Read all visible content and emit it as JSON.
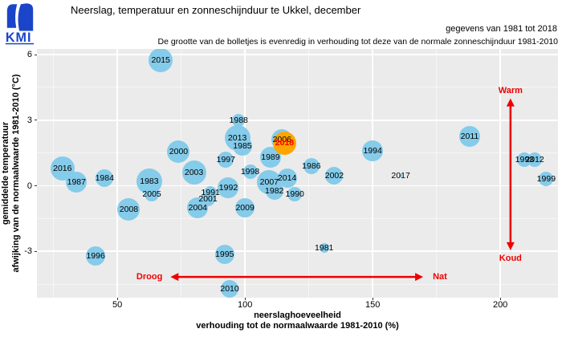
{
  "header": {
    "logo_text": "KMI",
    "title": "Neerslag, temperatuur en zonneschijnduur te Ukkel, december",
    "subtitle_right": "gegevens van 1981 tot 2018",
    "bubble_note": "De grootte van de bolletjes is evenredig in verhouding tot deze van de normale zonneschijnduur 1981-2010"
  },
  "chart_data": {
    "type": "scatter",
    "title": "Neerslag, temperatuur en zonneschijnduur te Ukkel, december",
    "xlabel_line1": "neerslaghoeveelheid",
    "xlabel_line2": "verhouding tot de normaalwaarde 1981-2010 (%)",
    "ylabel_line1": "gemiddelde temperatuur",
    "ylabel_line2": "afwijking van de normaalwaarde 1981-2010 (°C)",
    "xlim": [
      18.5,
      222.6
    ],
    "ylim": [
      -5.12,
      6.26
    ],
    "x_ticks": [
      50,
      100,
      150,
      200
    ],
    "y_ticks": [
      6,
      3,
      0,
      -3
    ],
    "x_minor_ticks": [
      25,
      75,
      125,
      175
    ],
    "y_minor_ticks": [
      4.5,
      1.5,
      -1.5,
      -4.5
    ],
    "grid": true,
    "legend_position": "none",
    "bubble_size_meaning": "evenredig met de normale zonneschijnduur 1981-2010",
    "points": [
      {
        "year": 1981,
        "x": 131,
        "y": -2.85,
        "r": 6
      },
      {
        "year": 1982,
        "x": 111.5,
        "y": -0.25,
        "r": 11
      },
      {
        "year": 1983,
        "x": 62.5,
        "y": 0.2,
        "r": 16
      },
      {
        "year": 1984,
        "x": 45,
        "y": 0.35,
        "r": 11
      },
      {
        "year": 1985,
        "x": 99,
        "y": 1.8,
        "r": 12
      },
      {
        "year": 1986,
        "x": 126,
        "y": 0.9,
        "r": 10
      },
      {
        "year": 1987,
        "x": 34,
        "y": 0.15,
        "r": 13
      },
      {
        "year": 1988,
        "x": 97.5,
        "y": 3.0,
        "r": 8
      },
      {
        "year": 1989,
        "x": 110,
        "y": 1.3,
        "r": 13
      },
      {
        "year": 1990,
        "x": 119.5,
        "y": -0.4,
        "r": 9
      },
      {
        "year": 1991,
        "x": 86.5,
        "y": -0.3,
        "r": 8
      },
      {
        "year": 1992,
        "x": 93.5,
        "y": -0.1,
        "r": 13
      },
      {
        "year": 1993,
        "x": 209.5,
        "y": 1.2,
        "r": 9
      },
      {
        "year": 1994,
        "x": 150,
        "y": 1.6,
        "r": 13
      },
      {
        "year": 1995,
        "x": 92,
        "y": -3.15,
        "r": 12
      },
      {
        "year": 1996,
        "x": 41.5,
        "y": -3.2,
        "r": 12
      },
      {
        "year": 1997,
        "x": 92.5,
        "y": 1.2,
        "r": 10
      },
      {
        "year": 1998,
        "x": 102,
        "y": 0.65,
        "r": 9
      },
      {
        "year": 1999,
        "x": 218,
        "y": 0.3,
        "r": 9
      },
      {
        "year": 2000,
        "x": 74,
        "y": 1.55,
        "r": 14
      },
      {
        "year": 2001,
        "x": 85.5,
        "y": -0.6,
        "r": 9
      },
      {
        "year": 2002,
        "x": 135,
        "y": 0.45,
        "r": 11
      },
      {
        "year": 2003,
        "x": 80,
        "y": 0.6,
        "r": 15
      },
      {
        "year": 2004,
        "x": 81.5,
        "y": -1.0,
        "r": 13
      },
      {
        "year": 2005,
        "x": 63.5,
        "y": -0.4,
        "r": 9
      },
      {
        "year": 2006,
        "x": 114.5,
        "y": 2.1,
        "r": 13
      },
      {
        "year": 2007,
        "x": 109.5,
        "y": 0.15,
        "r": 15
      },
      {
        "year": 2008,
        "x": 54.5,
        "y": -1.1,
        "r": 14
      },
      {
        "year": 2009,
        "x": 100,
        "y": -1.0,
        "r": 12
      },
      {
        "year": 2010,
        "x": 94,
        "y": -4.7,
        "r": 11
      },
      {
        "year": 2011,
        "x": 188,
        "y": 2.25,
        "r": 13
      },
      {
        "year": 2012,
        "x": 213.5,
        "y": 1.2,
        "r": 9
      },
      {
        "year": 2013,
        "x": 97,
        "y": 2.2,
        "r": 16
      },
      {
        "year": 2014,
        "x": 116.5,
        "y": 0.35,
        "r": 12
      },
      {
        "year": 2015,
        "x": 67,
        "y": 5.75,
        "r": 15
      },
      {
        "year": 2016,
        "x": 28.5,
        "y": 0.8,
        "r": 15
      },
      {
        "year": 2017,
        "x": 161,
        "y": 0.45,
        "r": 2
      },
      {
        "year": 2018,
        "x": 115.5,
        "y": 1.95,
        "r": 14.5,
        "highlight": true
      }
    ],
    "annotations": {
      "vertical_arrow": {
        "x": 204,
        "y_top": 4.0,
        "y_bottom": -2.95,
        "label_top": "Warm",
        "label_bottom": "Koud"
      },
      "horizontal_arrow": {
        "y": -4.17,
        "x_left": 70.8,
        "x_right": 169.8,
        "label_left": "Droog",
        "label_right": "Nat"
      }
    },
    "colors": {
      "bubble": "#85CBEA",
      "highlight_bubble": "#FFA500",
      "highlight_label": "#EE0000",
      "annotation": "#EE0000",
      "panel_bg": "#EBEBEB",
      "grid_major": "#FFFFFF",
      "grid_minor": "rgba(255,255,255,0.55)",
      "logo_blue": "#1A45C8",
      "label_text": "#000000"
    }
  }
}
